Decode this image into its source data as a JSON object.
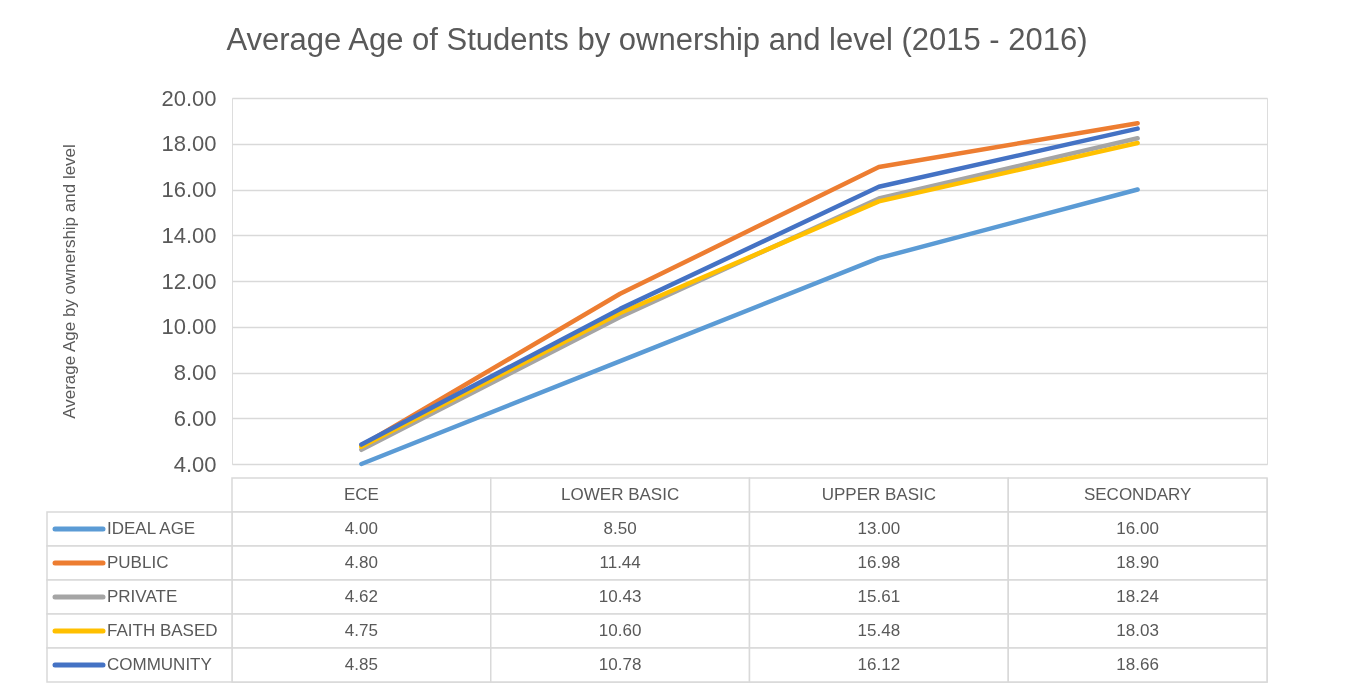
{
  "chart_data": {
    "type": "line",
    "title": "Average Age of Students by ownership and level (2015 - 2016)",
    "ylabel": "Average Age by ownership and level",
    "categories": [
      "ECE",
      "LOWER BASIC",
      "UPPER BASIC",
      "SECONDARY"
    ],
    "series": [
      {
        "name": "IDEAL AGE",
        "color": "#5b9bd5",
        "values": [
          4.0,
          8.5,
          13.0,
          16.0
        ],
        "value_labels": [
          "4.00",
          "8.50",
          "13.00",
          "16.00"
        ]
      },
      {
        "name": "PUBLIC",
        "color": "#ed7d31",
        "values": [
          4.8,
          11.44,
          16.98,
          18.9
        ],
        "value_labels": [
          "4.80",
          "11.44",
          "16.98",
          "18.90"
        ]
      },
      {
        "name": "PRIVATE",
        "color": "#a5a5a5",
        "values": [
          4.62,
          10.43,
          15.61,
          18.24
        ],
        "value_labels": [
          "4.62",
          "10.43",
          "15.61",
          "18.24"
        ]
      },
      {
        "name": "FAITH BASED",
        "color": "#ffc000",
        "values": [
          4.75,
          10.6,
          15.48,
          18.03
        ],
        "value_labels": [
          "4.75",
          "10.60",
          "15.48",
          "18.03"
        ]
      },
      {
        "name": "COMMUNITY",
        "color": "#4472c4",
        "values": [
          4.85,
          10.78,
          16.12,
          18.66
        ],
        "value_labels": [
          "4.85",
          "10.78",
          "16.12",
          "18.66"
        ]
      }
    ],
    "ylim": [
      4,
      20
    ],
    "yticks": [
      {
        "value": 4,
        "label": "4.00"
      },
      {
        "value": 6,
        "label": "6.00"
      },
      {
        "value": 8,
        "label": "8.00"
      },
      {
        "value": 10,
        "label": "10.00"
      },
      {
        "value": 12,
        "label": "12.00"
      },
      {
        "value": 14,
        "label": "14.00"
      },
      {
        "value": 16,
        "label": "16.00"
      },
      {
        "value": 18,
        "label": "18.00"
      },
      {
        "value": 20,
        "label": "20.00"
      }
    ],
    "grid": "y",
    "legend": "bottom left"
  }
}
